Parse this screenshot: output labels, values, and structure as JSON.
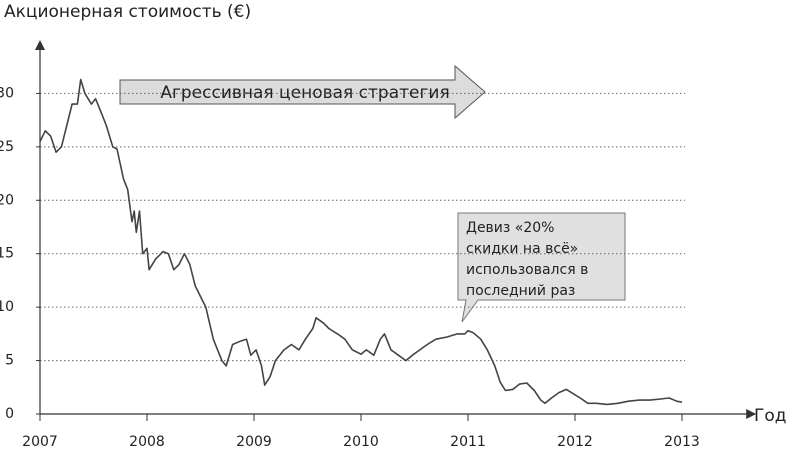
{
  "chart_data": {
    "type": "line",
    "y_axis_label": "Акционерная стоимость (€)",
    "x_axis_label": "Год",
    "color": "#444444",
    "grid": true,
    "xlim": [
      2007,
      2013.6
    ],
    "xticks": [
      2007,
      2008,
      2009,
      2010,
      2011,
      2012,
      2013
    ],
    "ylim": [
      0,
      35
    ],
    "yticks": [
      0,
      5,
      10,
      15,
      20,
      25,
      30
    ],
    "x": [
      2007.0,
      2007.05,
      2007.1,
      2007.15,
      2007.2,
      2007.25,
      2007.3,
      2007.35,
      2007.38,
      2007.42,
      2007.48,
      2007.52,
      2007.58,
      2007.62,
      2007.68,
      2007.72,
      2007.78,
      2007.82,
      2007.86,
      2007.88,
      2007.9,
      2007.93,
      2007.96,
      2008.0,
      2008.02,
      2008.08,
      2008.15,
      2008.2,
      2008.25,
      2008.3,
      2008.35,
      2008.4,
      2008.45,
      2008.5,
      2008.55,
      2008.62,
      2008.7,
      2008.74,
      2008.8,
      2008.87,
      2008.93,
      2008.97,
      2009.02,
      2009.07,
      2009.1,
      2009.15,
      2009.2,
      2009.28,
      2009.35,
      2009.42,
      2009.48,
      2009.55,
      2009.58,
      2009.65,
      2009.7,
      2009.78,
      2009.85,
      2009.92,
      2010.0,
      2010.05,
      2010.12,
      2010.18,
      2010.22,
      2010.28,
      2010.35,
      2010.42,
      2010.48,
      2010.55,
      2010.62,
      2010.7,
      2010.8,
      2010.9,
      2010.97,
      2011.0,
      2011.05,
      2011.12,
      2011.18,
      2011.25,
      2011.3,
      2011.35,
      2011.42,
      2011.48,
      2011.55,
      2011.62,
      2011.68,
      2011.72,
      2011.78,
      2011.85,
      2011.92,
      2012.0,
      2012.05,
      2012.12,
      2012.2,
      2012.3,
      2012.4,
      2012.5,
      2012.6,
      2012.7,
      2012.8,
      2012.88,
      2012.95,
      2013.0
    ],
    "values": [
      25.5,
      26.5,
      26,
      24.5,
      25,
      27,
      29,
      29,
      31.3,
      30,
      29,
      29.5,
      28,
      27,
      25,
      24.8,
      22,
      21,
      18,
      19,
      17,
      19,
      15,
      15.5,
      13.5,
      14.5,
      15.2,
      15,
      13.5,
      14,
      15,
      14,
      12,
      11,
      10,
      7,
      5,
      4.5,
      6.5,
      6.8,
      7,
      5.5,
      6,
      4.5,
      2.7,
      3.5,
      5,
      6,
      6.5,
      6,
      7,
      8,
      9,
      8.5,
      8,
      7.5,
      7,
      6,
      5.6,
      6,
      5.5,
      7,
      7.5,
      6,
      5.5,
      5,
      5.5,
      6,
      6.5,
      7,
      7.2,
      7.5,
      7.5,
      7.8,
      7.6,
      7,
      6,
      4.5,
      3,
      2.2,
      2.3,
      2.8,
      2.9,
      2.2,
      1.3,
      1.0,
      1.5,
      2,
      2.3,
      1.8,
      1.5,
      1,
      1,
      0.9,
      1.0,
      1.2,
      1.3,
      1.3,
      1.4,
      1.5,
      1.2,
      1.1
    ],
    "annotations": [
      {
        "text": "Агрессивная ценовая стратегия"
      },
      {
        "lines": [
          "Девиз «20%",
          "скидки на всё»",
          "использовался в",
          "последний раз"
        ]
      }
    ]
  }
}
